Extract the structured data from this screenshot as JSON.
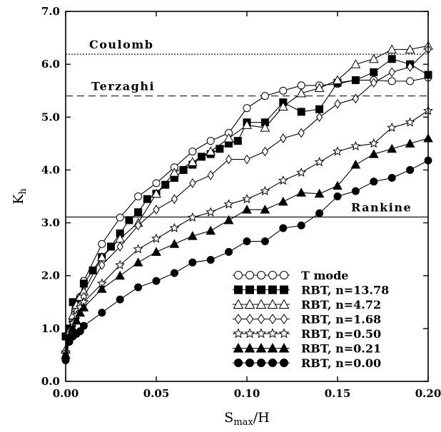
{
  "chart_data": {
    "type": "line",
    "xlabel": "S_max/H",
    "xlabel_main": "S",
    "xlabel_sub": "max",
    "xlabel_rest": "/H",
    "ylabel": "K_h",
    "ylabel_main": "K",
    "ylabel_sub": "h",
    "xlim": [
      0,
      0.2
    ],
    "ylim": [
      0,
      7
    ],
    "xticks": [
      0,
      0.05,
      0.1,
      0.15,
      0.2
    ],
    "xtick_labels": [
      "0.00",
      "0.05",
      "0.10",
      "0.15",
      "0.20"
    ],
    "yticks": [
      0,
      1,
      2,
      3,
      4,
      5,
      6,
      7
    ],
    "ytick_labels": [
      "0.0",
      "1.0",
      "2.0",
      "3.0",
      "4.0",
      "5.0",
      "6.0",
      "7.0"
    ],
    "grid": false,
    "legend_position": "bottom-right",
    "reference_lines": [
      {
        "label": "Coulomb",
        "value": 6.19,
        "style": "dotted"
      },
      {
        "label": "Terzaghi",
        "value": 5.4,
        "style": "dashed"
      },
      {
        "label": "Rankine",
        "value": 3.11,
        "style": "solid"
      }
    ],
    "series": [
      {
        "name": "T mode",
        "marker": "circle",
        "filled": false,
        "x": [
          0,
          0.002,
          0.004,
          0.006,
          0.008,
          0.01,
          0.02,
          0.03,
          0.04,
          0.05,
          0.06,
          0.07,
          0.08,
          0.09,
          0.1,
          0.11,
          0.12,
          0.13,
          0.14,
          0.15,
          0.16,
          0.17,
          0.18,
          0.19,
          0.2
        ],
        "y": [
          0.45,
          0.9,
          1.15,
          1.35,
          1.6,
          1.9,
          2.6,
          3.1,
          3.5,
          3.75,
          4.05,
          4.35,
          4.55,
          4.7,
          5.17,
          5.4,
          5.5,
          5.6,
          5.6,
          5.63,
          5.7,
          5.7,
          5.68,
          5.68,
          5.75
        ]
      },
      {
        "name": "RBT, n=13.78",
        "marker": "square",
        "filled": true,
        "x": [
          0,
          0.002,
          0.004,
          0.006,
          0.008,
          0.01,
          0.015,
          0.02,
          0.025,
          0.03,
          0.035,
          0.04,
          0.045,
          0.05,
          0.055,
          0.06,
          0.065,
          0.07,
          0.075,
          0.08,
          0.085,
          0.09,
          0.095,
          0.1,
          0.11,
          0.12,
          0.13,
          0.14,
          0.15,
          0.16,
          0.17,
          0.18,
          0.19,
          0.2
        ],
        "y": [
          0.85,
          1.0,
          1.5,
          1.45,
          1.55,
          1.85,
          2.1,
          2.35,
          2.55,
          2.8,
          3.05,
          3.2,
          3.45,
          3.55,
          3.72,
          3.85,
          4.0,
          4.1,
          4.25,
          4.3,
          4.4,
          4.5,
          4.55,
          4.9,
          4.9,
          5.28,
          5.1,
          5.15,
          5.65,
          5.7,
          5.85,
          6.1,
          6.0,
          5.8
        ]
      },
      {
        "name": "RBT, n=4.72",
        "marker": "triangle",
        "filled": false,
        "x": [
          0,
          0.002,
          0.004,
          0.006,
          0.008,
          0.01,
          0.02,
          0.03,
          0.04,
          0.05,
          0.06,
          0.07,
          0.08,
          0.09,
          0.1,
          0.11,
          0.12,
          0.13,
          0.14,
          0.15,
          0.16,
          0.17,
          0.18,
          0.19,
          0.2
        ],
        "y": [
          0.6,
          0.95,
          1.25,
          1.45,
          1.6,
          1.7,
          2.35,
          2.7,
          3.0,
          3.55,
          3.95,
          4.15,
          4.35,
          4.6,
          4.85,
          4.8,
          5.2,
          5.45,
          5.55,
          5.7,
          6.0,
          6.1,
          6.28,
          6.28,
          6.35
        ]
      },
      {
        "name": "RBT, n=1.68",
        "marker": "diamond",
        "filled": false,
        "x": [
          0,
          0.002,
          0.004,
          0.006,
          0.008,
          0.01,
          0.02,
          0.03,
          0.04,
          0.05,
          0.06,
          0.07,
          0.08,
          0.09,
          0.1,
          0.11,
          0.12,
          0.13,
          0.14,
          0.15,
          0.16,
          0.17,
          0.18,
          0.19,
          0.2
        ],
        "y": [
          0.5,
          0.85,
          1.05,
          1.2,
          1.45,
          1.6,
          2.2,
          2.55,
          2.95,
          3.25,
          3.45,
          3.75,
          3.9,
          4.2,
          4.2,
          4.35,
          4.6,
          4.7,
          5.0,
          5.25,
          5.35,
          5.65,
          5.85,
          5.95,
          6.28
        ]
      },
      {
        "name": "RBT, n=0.50",
        "marker": "star",
        "filled": false,
        "x": [
          0,
          0.002,
          0.004,
          0.006,
          0.008,
          0.01,
          0.02,
          0.03,
          0.04,
          0.05,
          0.06,
          0.07,
          0.08,
          0.09,
          0.1,
          0.11,
          0.12,
          0.13,
          0.14,
          0.15,
          0.16,
          0.17,
          0.18,
          0.19,
          0.2
        ],
        "y": [
          0.55,
          0.9,
          1.1,
          1.25,
          1.4,
          1.5,
          1.85,
          2.2,
          2.5,
          2.7,
          2.9,
          3.1,
          3.2,
          3.35,
          3.45,
          3.6,
          3.8,
          3.95,
          4.15,
          4.35,
          4.45,
          4.5,
          4.8,
          4.9,
          5.12
        ]
      },
      {
        "name": "RBT, n=0.21",
        "marker": "triangle",
        "filled": true,
        "x": [
          0,
          0.002,
          0.004,
          0.006,
          0.008,
          0.01,
          0.02,
          0.03,
          0.04,
          0.05,
          0.06,
          0.07,
          0.08,
          0.09,
          0.1,
          0.11,
          0.12,
          0.13,
          0.14,
          0.15,
          0.16,
          0.17,
          0.18,
          0.19,
          0.2
        ],
        "y": [
          0.5,
          0.85,
          1.0,
          1.15,
          1.3,
          1.4,
          1.75,
          2.0,
          2.25,
          2.45,
          2.6,
          2.75,
          2.85,
          3.05,
          3.25,
          3.25,
          3.4,
          3.57,
          3.55,
          3.7,
          4.1,
          4.3,
          4.4,
          4.5,
          4.6
        ]
      },
      {
        "name": "RBT, n=0.00",
        "marker": "circle",
        "filled": true,
        "x": [
          0,
          0.002,
          0.004,
          0.006,
          0.008,
          0.01,
          0.02,
          0.03,
          0.04,
          0.05,
          0.06,
          0.07,
          0.08,
          0.09,
          0.1,
          0.11,
          0.12,
          0.13,
          0.14,
          0.15,
          0.16,
          0.17,
          0.18,
          0.19,
          0.2
        ],
        "y": [
          0.4,
          0.75,
          0.85,
          0.9,
          0.95,
          1.05,
          1.3,
          1.55,
          1.78,
          1.9,
          2.05,
          2.25,
          2.3,
          2.45,
          2.65,
          2.65,
          2.9,
          2.95,
          3.18,
          3.5,
          3.6,
          3.78,
          3.85,
          4.0,
          4.18
        ]
      }
    ]
  }
}
